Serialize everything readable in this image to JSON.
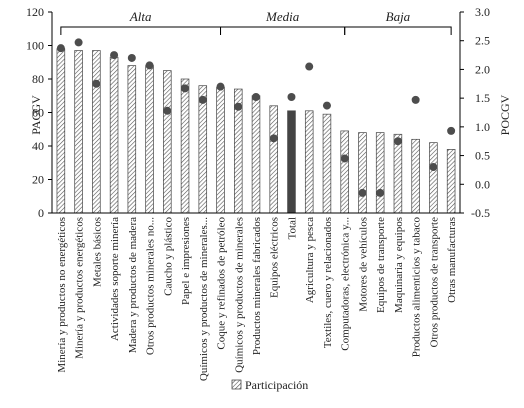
{
  "chart_data": {
    "type": "bar",
    "categories": [
      "Minería y productos no energéticos",
      "Minería y productos energéticos",
      "Metales básicos",
      "Actividades soporte minería",
      "Madera y productos de madera",
      "Otros productos minerales no...",
      "Caucho y plástico",
      "Papel e impresiones",
      "Químicos y productos de minerales...",
      "Coque y refinados de petróleo",
      "Químicos y productos de minerales",
      "Productos minerales fabricados",
      "Equipos eléctricos",
      "Total",
      "Agricultura y pesca",
      "Textiles, cuero y relacionados",
      "Computadoras, electrónica y...",
      "Motores de vehículos",
      "Equipos de transporte",
      "Maquinaria y equipos",
      "Productos alimenticios y tabaco",
      "Otros productos de transporte",
      "Otras manufacturas"
    ],
    "series": [
      {
        "name": "Participación",
        "axis": "left",
        "values": [
          98,
          97,
          97,
          93,
          88,
          88,
          85,
          80,
          76,
          75,
          74,
          70,
          64,
          61,
          61,
          59,
          49,
          48,
          48,
          47,
          44,
          42,
          38
        ]
      },
      {
        "axis": "right",
        "marker": "circle",
        "values": [
          2.37,
          2.47,
          1.75,
          2.25,
          2.2,
          2.07,
          1.28,
          1.67,
          1.47,
          1.7,
          1.35,
          1.52,
          0.8,
          1.52,
          2.05,
          1.37,
          0.45,
          -0.15,
          -0.15,
          0.75,
          1.47,
          0.3,
          0.93
        ]
      }
    ],
    "highlight_index": 13,
    "groups": [
      {
        "label": "Alta",
        "start": 0,
        "end": 9
      },
      {
        "label": "Media",
        "start": 9,
        "end": 16
      },
      {
        "label": "Baja",
        "start": 16,
        "end": 22
      }
    ],
    "ylabel_left": "PACGV",
    "ylabel_right": "POCGV",
    "ylim_left": [
      0,
      120
    ],
    "yticks_left": [
      "0",
      "20",
      "40",
      "60",
      "80",
      "100",
      "120"
    ],
    "ylim_right": [
      -0.5,
      3.0
    ],
    "yticks_right": [
      "-0.5",
      "0.0",
      "0.5",
      "1.0",
      "1.5",
      "2.0",
      "2.5",
      "3.0"
    ],
    "legend": {
      "label": "Participación",
      "placement": "bottom-center"
    },
    "grid": false,
    "colors": {
      "bar_hatch": "#555555",
      "highlight_fill": "#444444",
      "dot": "#4d4d4d",
      "axis": "#000000"
    }
  }
}
